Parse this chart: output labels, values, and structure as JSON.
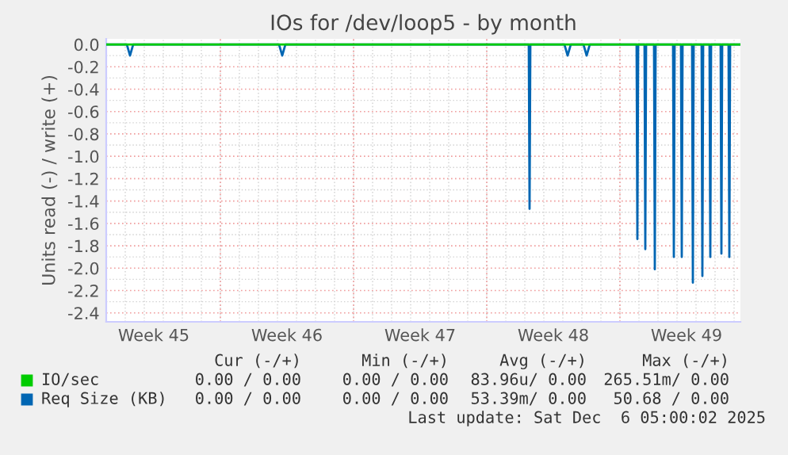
{
  "chart_data": {
    "type": "line",
    "title": "IOs for /dev/loop5 - by month",
    "ylabel": "Units read (-) / write (+)",
    "xlim": [
      "2025-11-04T00:00",
      "2025-12-07T08:00"
    ],
    "ylim": [
      -2.48,
      0.05
    ],
    "xticks": [
      {
        "value": "2025-11-06T12:00",
        "label": "Week 45"
      },
      {
        "value": "2025-11-13T12:00",
        "label": "Week 46"
      },
      {
        "value": "2025-11-20T12:00",
        "label": "Week 47"
      },
      {
        "value": "2025-11-27T12:00",
        "label": "Week 48"
      },
      {
        "value": "2025-12-04T12:00",
        "label": "Week 49"
      }
    ],
    "yticks": [
      {
        "value": 0,
        "label": "0.0"
      },
      -0.2,
      -0.4,
      -0.6,
      -0.8,
      {
        "value": -1,
        "label": "-1.0"
      },
      -1.2,
      -1.4,
      -1.6,
      -1.8,
      {
        "value": -2,
        "label": "-2.0"
      },
      -2.2,
      -2.4
    ],
    "grid": true,
    "legend": "bottom",
    "marker": "none",
    "line_style": "solid",
    "series": [
      {
        "name": "IO/sec",
        "color": "#00cc00",
        "x": [
          "2025-11-04T00:00",
          "2025-12-07T08:00"
        ],
        "values": [
          0,
          0
        ]
      },
      {
        "name": "Req Size (KB)",
        "color": "#0066b3",
        "x": [
          "2025-11-04T00:00",
          "2025-11-05T02:00",
          "2025-11-05T06:00",
          "2025-11-05T10:00",
          "2025-11-13T02:00",
          "2025-11-13T06:00",
          "2025-11-13T10:00",
          "2025-11-26T05:00",
          "2025-11-26T06:00",
          "2025-11-26T07:00",
          "2025-11-28T02:00",
          "2025-11-28T06:00",
          "2025-11-28T10:00",
          "2025-11-29T02:00",
          "2025-11-29T06:00",
          "2025-11-29T10:00",
          "2025-12-01T21:00",
          "2025-12-01T22:00",
          "2025-12-01T23:00",
          "2025-12-02T07:00",
          "2025-12-02T08:00",
          "2025-12-02T09:00",
          "2025-12-02T19:00",
          "2025-12-02T20:00",
          "2025-12-02T21:00",
          "2025-12-03T19:00",
          "2025-12-03T20:00",
          "2025-12-03T21:00",
          "2025-12-04T05:00",
          "2025-12-04T06:00",
          "2025-12-04T07:00",
          "2025-12-04T19:00",
          "2025-12-04T20:00",
          "2025-12-04T21:00",
          "2025-12-05T07:00",
          "2025-12-05T08:00",
          "2025-12-05T09:00",
          "2025-12-05T17:00",
          "2025-12-05T18:00",
          "2025-12-05T19:00",
          "2025-12-06T07:00",
          "2025-12-06T08:00",
          "2025-12-06T09:00",
          "2025-12-06T17:00",
          "2025-12-06T18:00",
          "2025-12-06T19:00",
          "2025-12-07T08:00"
        ],
        "values": [
          0,
          0,
          -0.1,
          0,
          0,
          -0.1,
          0,
          0,
          -1.47,
          0,
          0,
          -0.1,
          0,
          0,
          -0.1,
          0,
          0,
          -1.74,
          0,
          0,
          -1.83,
          0,
          0,
          -2.01,
          0,
          0,
          -1.9,
          0,
          0,
          -1.9,
          0,
          0,
          -2.13,
          0,
          0,
          -2.07,
          0,
          0,
          -1.9,
          0,
          0,
          -1.87,
          0,
          0,
          -1.9,
          0,
          0
        ]
      }
    ],
    "annotations": [
      "Cur (-/+)",
      "Min (-/+)",
      "Avg (-/+)",
      "Max (-/+)",
      "0.00 / 0.00",
      "0.00 / 0.00",
      "83.96u/ 0.00",
      "265.51m/ 0.00",
      "0.00 / 0.00",
      "0.00 / 0.00",
      "53.39m/ 0.00",
      "50.68 / 0.00",
      "Last update: Sat Dec  6 05:00:02 2025"
    ]
  }
}
